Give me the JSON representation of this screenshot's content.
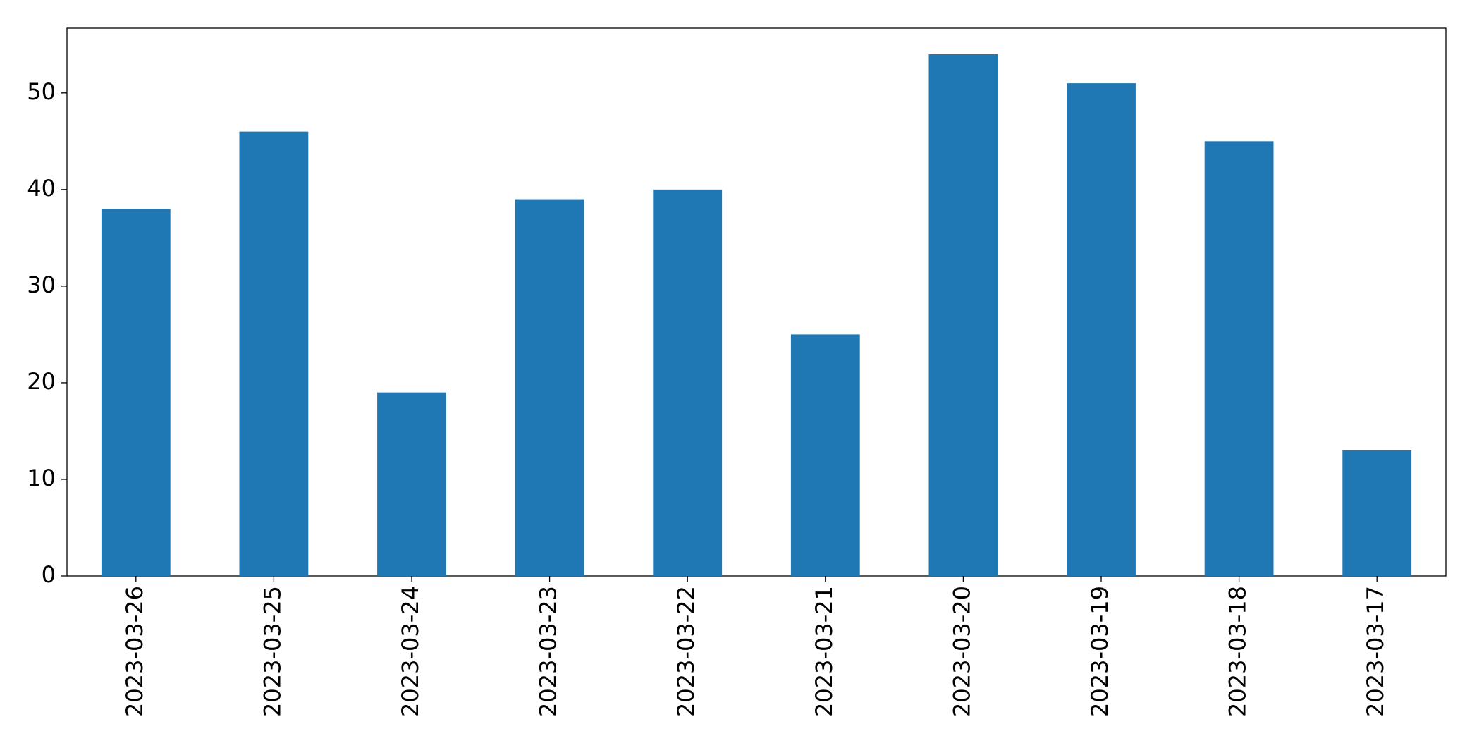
{
  "chart_data": {
    "type": "bar",
    "categories": [
      "2023-03-26",
      "2023-03-25",
      "2023-03-24",
      "2023-03-23",
      "2023-03-22",
      "2023-03-21",
      "2023-03-20",
      "2023-03-19",
      "2023-03-18",
      "2023-03-17"
    ],
    "values": [
      38,
      46,
      19,
      39,
      40,
      25,
      54,
      51,
      45,
      13
    ],
    "color": "#1f77b4",
    "ylim": [
      0,
      56.7
    ],
    "yticks": [
      0,
      10,
      20,
      30,
      40,
      50
    ],
    "grid": false
  }
}
